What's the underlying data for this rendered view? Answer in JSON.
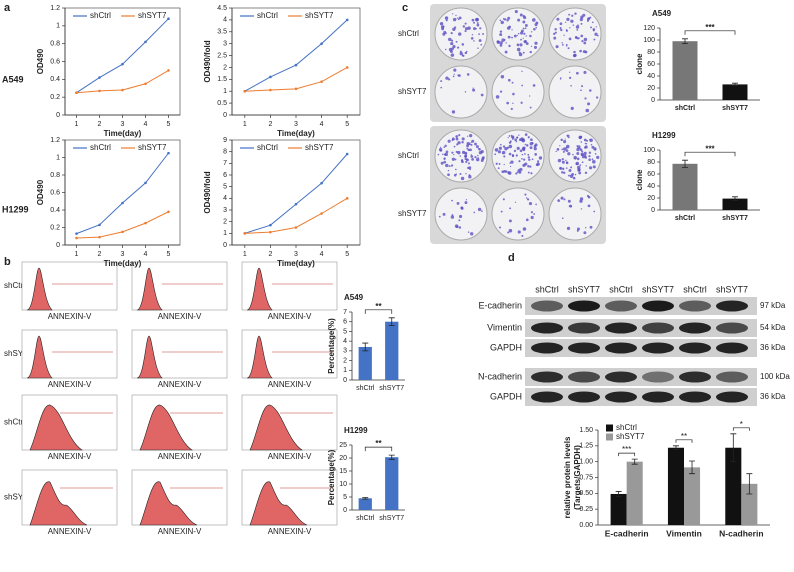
{
  "figure": {
    "panel_letters": [
      "a",
      "b",
      "c",
      "d"
    ],
    "cell_lines": [
      "A549",
      "H1299"
    ],
    "groups": [
      "shCtrl",
      "shSYT7"
    ],
    "flow_xlabel": "ANNEXIN-V",
    "blot": {
      "lanes": [
        "shCtrl",
        "shSYT7",
        "shCtrl",
        "shSYT7",
        "shCtrl",
        "shSYT7"
      ],
      "proteins": [
        "E-cadherin",
        "Vimentin",
        "GAPDH",
        "N-cadherin",
        "GAPDH"
      ],
      "sizes": [
        "97 kDa",
        "54 kDa",
        "36 kDa",
        "100 kDa",
        "36 kDa"
      ]
    }
  },
  "chart_data": [
    {
      "type": "line",
      "x": [
        1,
        2,
        3,
        4,
        5
      ],
      "xlim": [
        0.5,
        5.5
      ],
      "xticks": [
        1,
        2,
        3,
        4,
        5
      ],
      "xlabel": "Time(day)",
      "ylabel": "OD490",
      "ylim": [
        0,
        1.2
      ],
      "yticks": [
        0,
        0.2,
        0.4,
        0.6,
        0.8,
        1,
        1.2
      ],
      "series": [
        {
          "name": "shCtrl",
          "color": "#4472c4",
          "values": [
            0.25,
            0.42,
            0.57,
            0.82,
            1.08
          ]
        },
        {
          "name": "shSYT7",
          "color": "#ed7d31",
          "values": [
            0.25,
            0.27,
            0.28,
            0.35,
            0.5
          ]
        }
      ]
    },
    {
      "type": "line",
      "x": [
        1,
        2,
        3,
        4,
        5
      ],
      "xlim": [
        0.5,
        5.5
      ],
      "xticks": [
        1,
        2,
        3,
        4,
        5
      ],
      "xlabel": "Time(day)",
      "ylabel": "OD490/fold",
      "ylim": [
        0,
        4.5
      ],
      "yticks": [
        0,
        0.5,
        1,
        1.5,
        2,
        2.5,
        3,
        3.5,
        4,
        4.5
      ],
      "series": [
        {
          "name": "shCtrl",
          "color": "#4472c4",
          "values": [
            1,
            1.6,
            2.1,
            3.0,
            4.0
          ]
        },
        {
          "name": "shSYT7",
          "color": "#ed7d31",
          "values": [
            1,
            1.05,
            1.1,
            1.4,
            2.0
          ]
        }
      ]
    },
    {
      "type": "line",
      "x": [
        1,
        2,
        3,
        4,
        5
      ],
      "xlim": [
        0.5,
        5.5
      ],
      "xticks": [
        1,
        2,
        3,
        4,
        5
      ],
      "xlabel": "Time(day)",
      "ylabel": "OD490",
      "ylim": [
        0,
        1.2
      ],
      "yticks": [
        0,
        0.2,
        0.4,
        0.6,
        0.8,
        1,
        1.2
      ],
      "series": [
        {
          "name": "shCtrl",
          "color": "#4472c4",
          "values": [
            0.13,
            0.23,
            0.48,
            0.71,
            1.05
          ]
        },
        {
          "name": "shSYT7",
          "color": "#ed7d31",
          "values": [
            0.08,
            0.09,
            0.15,
            0.25,
            0.38
          ]
        }
      ]
    },
    {
      "type": "line",
      "x": [
        1,
        2,
        3,
        4,
        5
      ],
      "xlim": [
        0.5,
        5.5
      ],
      "xticks": [
        1,
        2,
        3,
        4,
        5
      ],
      "xlabel": "Time(day)",
      "ylabel": "OD490/fold",
      "ylim": [
        0,
        9
      ],
      "yticks": [
        0,
        1,
        2,
        3,
        4,
        5,
        6,
        7,
        8,
        9
      ],
      "series": [
        {
          "name": "shCtrl",
          "color": "#4472c4",
          "values": [
            1,
            1.7,
            3.5,
            5.3,
            7.8
          ]
        },
        {
          "name": "shSYT7",
          "color": "#ed7d31",
          "values": [
            1,
            1.1,
            1.5,
            2.7,
            4.0
          ]
        }
      ]
    },
    {
      "type": "bar",
      "title": "A549",
      "ylabel": "Percentage(%)",
      "categories": [
        "shCtrl",
        "shSYT7"
      ],
      "values": [
        3.4,
        6.0
      ],
      "errors": [
        0.4,
        0.4
      ],
      "colors": [
        "#4472c4",
        "#4472c4"
      ],
      "ylim": [
        0,
        7
      ],
      "yticks": [
        0,
        1,
        2,
        3,
        4,
        5,
        6,
        7
      ],
      "annotation": "**"
    },
    {
      "type": "bar",
      "title": "H1299",
      "ylabel": "Percentage(%)",
      "categories": [
        "shCtrl",
        "shSYT7"
      ],
      "values": [
        4.5,
        20.3
      ],
      "errors": [
        0.3,
        0.8
      ],
      "colors": [
        "#4472c4",
        "#4472c4"
      ],
      "ylim": [
        0,
        25
      ],
      "yticks": [
        0,
        5,
        10,
        15,
        20,
        25
      ],
      "annotation": "**"
    },
    {
      "type": "bar",
      "title": "A549",
      "ylabel": "clone",
      "categories": [
        "shCtrl",
        "shSYT7"
      ],
      "values": [
        98,
        26
      ],
      "errors": [
        4,
        2
      ],
      "colors": [
        "#777777",
        "#111111"
      ],
      "ylim": [
        0,
        120
      ],
      "yticks": [
        0,
        20,
        40,
        60,
        80,
        100,
        120
      ],
      "annotation": "***"
    },
    {
      "type": "bar",
      "title": "H1299",
      "ylabel": "clone",
      "categories": [
        "shCtrl",
        "shSYT7"
      ],
      "values": [
        77,
        19
      ],
      "errors": [
        6,
        3
      ],
      "colors": [
        "#777777",
        "#111111"
      ],
      "ylim": [
        0,
        100
      ],
      "yticks": [
        0,
        20,
        40,
        60,
        80,
        100
      ],
      "annotation": "***"
    },
    {
      "type": "grouped-bar",
      "ylabel": [
        "relative protein levels",
        "(Targets/GAPDH)"
      ],
      "categories": [
        "E-cadherin",
        "Vimentin",
        "N-cadherin"
      ],
      "series": [
        {
          "name": "shCtrl",
          "color": "#111111",
          "values": [
            0.49,
            1.22,
            1.22
          ],
          "errors": [
            0.04,
            0.03,
            0.22
          ]
        },
        {
          "name": "shSYT7",
          "color": "#999999",
          "values": [
            1.0,
            0.91,
            0.65
          ],
          "errors": [
            0.04,
            0.1,
            0.16
          ]
        }
      ],
      "ylim": [
        0,
        1.5
      ],
      "yticks": [
        {
          "value": 0,
          "label": "0.00"
        },
        {
          "value": 0.25,
          "label": "0.25"
        },
        {
          "value": 0.5,
          "label": "0.50"
        },
        {
          "value": 0.75,
          "label": "0.75"
        },
        {
          "value": 1,
          "label": "1.00"
        },
        {
          "value": 1.25,
          "label": "1.25"
        },
        {
          "value": 1.5,
          "label": "1.50"
        }
      ],
      "annotations": [
        "***",
        "**",
        "*"
      ]
    }
  ]
}
